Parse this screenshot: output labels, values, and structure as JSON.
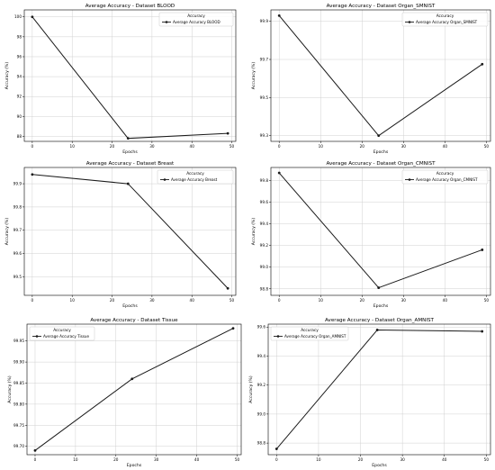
{
  "chart_data": [
    {
      "type": "line",
      "title": "Average Accuracy - Dataset BLOOD",
      "xlabel": "Epochs",
      "ylabel": "Accuracy (%)",
      "legend_title": "Accuracy",
      "legend_position": "top-right",
      "grid": true,
      "xlim": [
        -2,
        51
      ],
      "ylim": [
        87.5,
        100.7
      ],
      "xticks": [
        0,
        10,
        20,
        30,
        40,
        50
      ],
      "yticks": [
        88,
        90,
        92,
        94,
        96,
        98,
        100
      ],
      "series": [
        {
          "name": "Average Accuracy BLOOD",
          "x": [
            0,
            24,
            49
          ],
          "y": [
            100.0,
            87.8,
            88.3
          ]
        }
      ]
    },
    {
      "type": "line",
      "title": "Average Accuracy - Dataset Organ_SMNIST",
      "xlabel": "Epochs",
      "ylabel": "Accuracy (%)",
      "legend_title": "Accuracy",
      "legend_position": "top-right",
      "grid": true,
      "xlim": [
        -2,
        51
      ],
      "ylim": [
        99.27,
        99.96
      ],
      "xticks": [
        0,
        10,
        20,
        30,
        40,
        50
      ],
      "yticks": [
        99.3,
        99.5,
        99.7,
        99.9
      ],
      "series": [
        {
          "name": "Average Accuracy Organ_SMNIST",
          "x": [
            0,
            24,
            49
          ],
          "y": [
            99.93,
            99.3,
            99.675
          ]
        }
      ]
    },
    {
      "type": "line",
      "title": "Average Accuracy - Dataset Breast",
      "xlabel": "Epochs",
      "ylabel": "Accuracy (%)",
      "legend_title": "Accuracy",
      "legend_position": "top-right",
      "grid": true,
      "xlim": [
        -2,
        51
      ],
      "ylim": [
        99.42,
        99.97
      ],
      "xticks": [
        0,
        10,
        20,
        30,
        40,
        50
      ],
      "yticks": [
        99.5,
        99.6,
        99.7,
        99.8,
        99.9
      ],
      "series": [
        {
          "name": "Average Accuracy Breast",
          "x": [
            0,
            24,
            49
          ],
          "y": [
            99.94,
            99.9,
            99.45
          ]
        }
      ]
    },
    {
      "type": "line",
      "title": "Average Accuracy - Dataset Organ_CMNIST",
      "xlabel": "Epochs",
      "ylabel": "Accuracy (%)",
      "legend_title": "Accuracy",
      "legend_position": "top-right",
      "grid": true,
      "xlim": [
        -2,
        51
      ],
      "ylim": [
        98.74,
        99.92
      ],
      "xticks": [
        0,
        10,
        20,
        30,
        40,
        50
      ],
      "yticks": [
        98.8,
        99.0,
        99.2,
        99.4,
        99.6,
        99.8
      ],
      "series": [
        {
          "name": "Average Accuracy Organ_CMNIST",
          "x": [
            0,
            24,
            49
          ],
          "y": [
            99.87,
            98.81,
            99.16
          ]
        }
      ]
    },
    {
      "type": "line",
      "title": "Average Accuracy - Dataset Tissue",
      "xlabel": "Epochs",
      "ylabel": "Accuracy (%)",
      "legend_title": "Accuracy",
      "legend_position": "top-left",
      "grid": true,
      "xlim": [
        -2,
        51
      ],
      "ylim": [
        99.68,
        99.99
      ],
      "xticks": [
        0,
        10,
        20,
        30,
        40,
        50
      ],
      "yticks": [
        99.7,
        99.75,
        99.8,
        99.85,
        99.9,
        99.95
      ],
      "series": [
        {
          "name": "Average Accuracy Tissue",
          "x": [
            0,
            24,
            49
          ],
          "y": [
            99.69,
            99.86,
            99.98
          ]
        }
      ]
    },
    {
      "type": "line",
      "title": "Average Accuracy - Dataset Organ_AMNIST",
      "xlabel": "Epochs",
      "ylabel": "Accuracy (%)",
      "legend_title": "Accuracy",
      "legend_position": "top-left",
      "grid": true,
      "xlim": [
        -2,
        51
      ],
      "ylim": [
        98.72,
        99.62
      ],
      "xticks": [
        0,
        10,
        20,
        30,
        40,
        50
      ],
      "yticks": [
        98.8,
        99.0,
        99.2,
        99.4,
        99.6
      ],
      "series": [
        {
          "name": "Average Accuracy Organ_AMNIST",
          "x": [
            0,
            24,
            49
          ],
          "y": [
            98.76,
            99.58,
            99.57
          ]
        }
      ]
    }
  ]
}
